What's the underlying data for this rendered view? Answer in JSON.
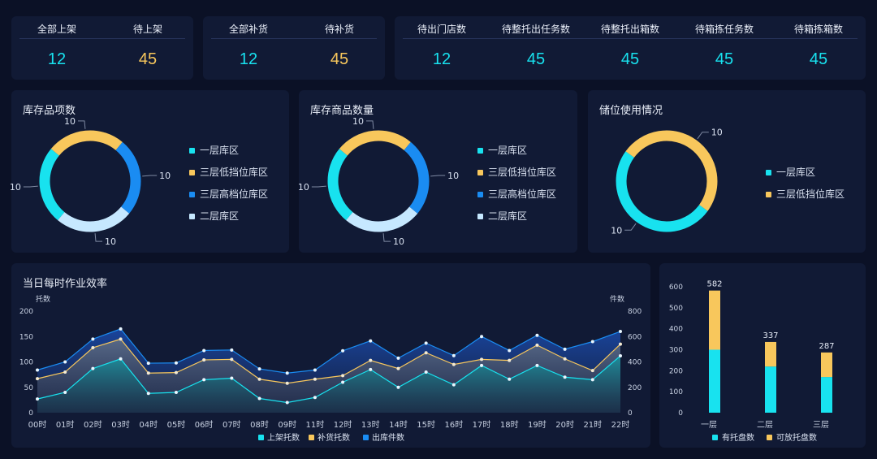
{
  "colors": {
    "cyan": "#18e2ef",
    "yellow": "#f8c75c",
    "blue": "#1a8cf2",
    "lightblue": "#c6e8ff",
    "bg": "#0b1126",
    "card": "#111a35"
  },
  "stats": {
    "groups": [
      [
        {
          "label": "全部上架",
          "value": "12",
          "color": "cyan"
        },
        {
          "label": "待上架",
          "value": "45",
          "color": "yellow"
        }
      ],
      [
        {
          "label": "全部补货",
          "value": "12",
          "color": "cyan"
        },
        {
          "label": "待补货",
          "value": "45",
          "color": "yellow"
        }
      ],
      [
        {
          "label": "待出门店数",
          "value": "12",
          "color": "cyan"
        },
        {
          "label": "待整托出任务数",
          "value": "45",
          "color": "cyan"
        },
        {
          "label": "待整托出箱数",
          "value": "45",
          "color": "cyan"
        },
        {
          "label": "待箱拣任务数",
          "value": "45",
          "color": "cyan"
        },
        {
          "label": "待箱拣箱数",
          "value": "45",
          "color": "cyan"
        }
      ]
    ]
  },
  "donuts": [
    {
      "title": "库存品项数",
      "legend": [
        "一层库区",
        "三层低挡位库区",
        "三层高档位库区",
        "二层库区"
      ],
      "chart_data": {
        "type": "pie",
        "slices": [
          {
            "name": "一层库区",
            "value": 10,
            "color": "#18e2ef"
          },
          {
            "name": "三层低挡位库区",
            "value": 10,
            "color": "#f8c75c"
          },
          {
            "name": "三层高档位库区",
            "value": 10,
            "color": "#1a8cf2"
          },
          {
            "name": "二层库区",
            "value": 10,
            "color": "#c6e8ff"
          }
        ]
      },
      "labels": [
        "10",
        "10",
        "10",
        "10"
      ]
    },
    {
      "title": "库存商品数量",
      "legend": [
        "一层库区",
        "三层低挡位库区",
        "三层高档位库区",
        "二层库区"
      ],
      "chart_data": {
        "type": "pie",
        "slices": [
          {
            "name": "一层库区",
            "value": 10,
            "color": "#18e2ef"
          },
          {
            "name": "三层低挡位库区",
            "value": 10,
            "color": "#f8c75c"
          },
          {
            "name": "三层高档位库区",
            "value": 10,
            "color": "#1a8cf2"
          },
          {
            "name": "二层库区",
            "value": 10,
            "color": "#c6e8ff"
          }
        ]
      },
      "labels": [
        "10",
        "10",
        "10",
        "10"
      ]
    },
    {
      "title": "储位使用情况",
      "legend": [
        "一层库区",
        "三层低挡位库区"
      ],
      "chart_data": {
        "type": "pie",
        "slices": [
          {
            "name": "一层库区",
            "value": 10,
            "color": "#18e2ef"
          },
          {
            "name": "三层低挡位库区",
            "value": 10,
            "color": "#f8c75c"
          }
        ]
      },
      "labels": [
        "10",
        "10"
      ]
    }
  ],
  "efficiency": {
    "title": "当日每时作业效率",
    "left_unit": "托数",
    "right_unit": "件数",
    "chart_data": {
      "type": "area",
      "x": [
        "00时",
        "01时",
        "02时",
        "03时",
        "04时",
        "05时",
        "06时",
        "07时",
        "08时",
        "09时",
        "11时",
        "12时",
        "13时",
        "14时",
        "15时",
        "16时",
        "17时",
        "18时",
        "19时",
        "20时",
        "21时",
        "22时"
      ],
      "left_ylim": [
        0,
        200
      ],
      "right_ylim": [
        0,
        800
      ],
      "left_ticks": [
        "0",
        "50",
        "100",
        "150",
        "200"
      ],
      "right_ticks": [
        "0",
        "200",
        "400",
        "600",
        "800"
      ],
      "series": [
        {
          "name": "上架托数",
          "axis": "left",
          "color": "#18e2ef",
          "values": [
            27,
            40,
            87,
            106,
            38,
            40,
            65,
            68,
            28,
            20,
            30,
            60,
            85,
            50,
            80,
            55,
            93,
            66,
            93,
            70,
            65,
            112
          ]
        },
        {
          "name": "补货托数",
          "axis": "left",
          "color": "#f8c75c",
          "values": [
            67,
            80,
            128,
            145,
            78,
            79,
            104,
            105,
            66,
            58,
            66,
            73,
            103,
            87,
            118,
            95,
            105,
            103,
            133,
            106,
            83,
            135
          ]
        },
        {
          "name": "出库件数",
          "axis": "right",
          "color": "#1a8cf2",
          "values": [
            336,
            400,
            580,
            660,
            390,
            392,
            490,
            494,
            345,
            312,
            336,
            488,
            566,
            430,
            548,
            450,
            600,
            490,
            610,
            500,
            560,
            640
          ]
        }
      ]
    }
  },
  "stacked": {
    "chart_data": {
      "type": "bar",
      "categories": [
        "一层",
        "二层",
        "三层"
      ],
      "ylim": [
        0,
        600
      ],
      "ticks": [
        "0",
        "100",
        "200",
        "300",
        "400",
        "500",
        "600"
      ],
      "series": [
        {
          "name": "有托盘数",
          "color": "#18e2ef",
          "values": [
            300,
            220,
            170
          ]
        },
        {
          "name": "可放托盘数",
          "color": "#f8c75c",
          "values": [
            282,
            117,
            117
          ]
        }
      ],
      "totals": [
        "582",
        "337",
        "287"
      ]
    }
  }
}
